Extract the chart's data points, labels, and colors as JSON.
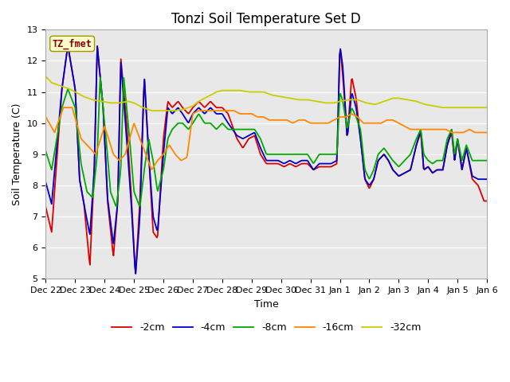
{
  "title": "Tonzi Soil Temperature Set D",
  "xlabel": "Time",
  "ylabel": "Soil Temperature (C)",
  "ylim": [
    5.0,
    13.0
  ],
  "yticks": [
    5.0,
    6.0,
    7.0,
    8.0,
    9.0,
    10.0,
    11.0,
    12.0,
    13.0
  ],
  "legend_label": "TZ_fmet",
  "series_labels": [
    "-2cm",
    "-4cm",
    "-8cm",
    "-16cm",
    "-32cm"
  ],
  "series_colors": [
    "#dd0000",
    "#0000cc",
    "#00aa00",
    "#ff8800",
    "#cccc00"
  ],
  "background_color": "#e8e8e8",
  "title_fontsize": 12,
  "axis_fontsize": 9,
  "tick_fontsize": 8,
  "xtick_labels": [
    "Dec 22",
    "Dec 23",
    "Dec 24",
    "Dec 25",
    "Dec 26",
    "Dec 27",
    "Dec 28",
    "Dec 29",
    "Dec 30",
    "Dec 31",
    "Jan 1",
    "Jan 2",
    "Jan 3",
    "Jan 4",
    "Jan 5",
    "Jan 6"
  ]
}
